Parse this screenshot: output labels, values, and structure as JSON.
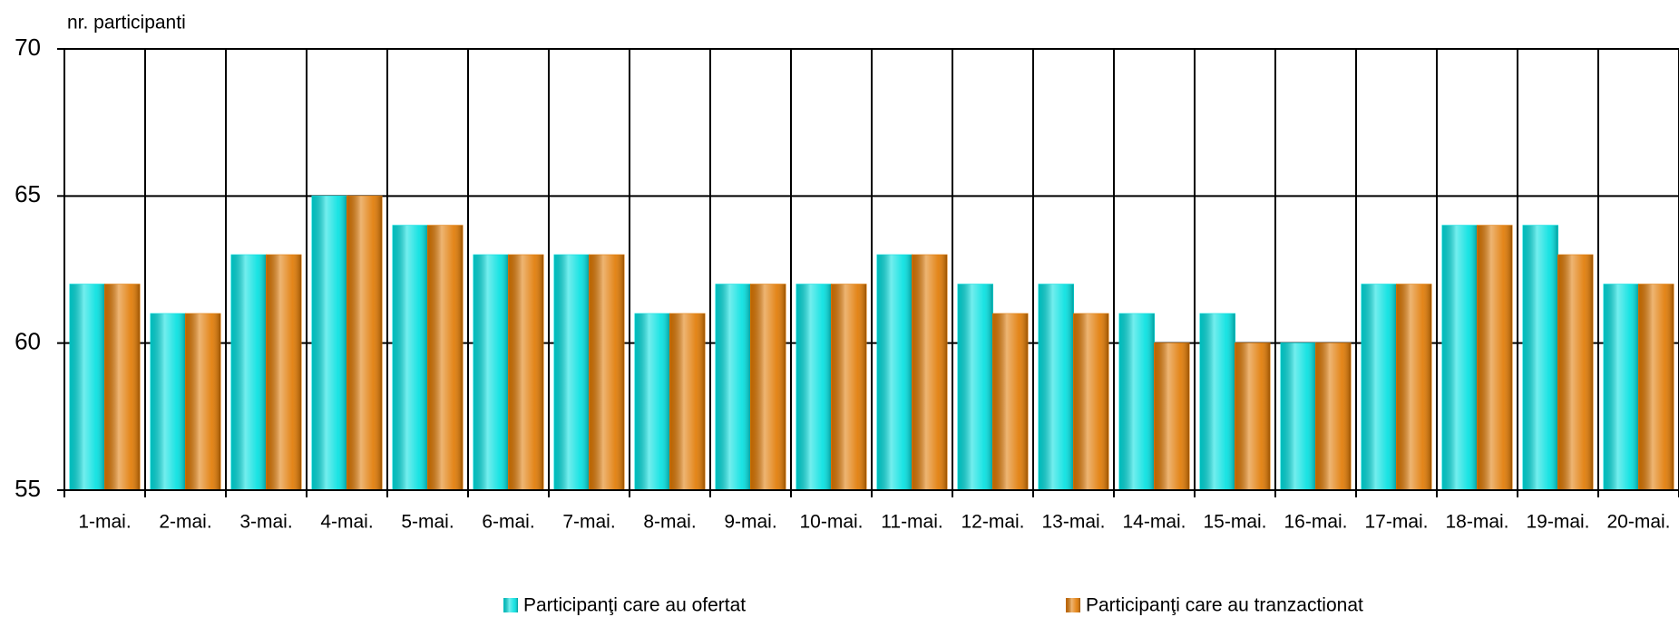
{
  "chart_data": {
    "type": "bar",
    "y_label": "nr. participanti",
    "categories": [
      "1-mai.",
      "2-mai.",
      "3-mai.",
      "4-mai.",
      "5-mai.",
      "6-mai.",
      "7-mai.",
      "8-mai.",
      "9-mai.",
      "10-mai.",
      "11-mai.",
      "12-mai.",
      "13-mai.",
      "14-mai.",
      "15-mai.",
      "16-mai.",
      "17-mai.",
      "18-mai.",
      "19-mai.",
      "20-mai."
    ],
    "series": [
      {
        "name": "Participanţi care au ofertat",
        "color": "#00e0e0",
        "values": [
          62,
          61,
          63,
          65,
          64,
          63,
          63,
          61,
          62,
          62,
          63,
          62,
          62,
          61,
          61,
          60,
          62,
          64,
          64,
          62
        ]
      },
      {
        "name": "Participanţi care au tranzactionat",
        "color": "#e07800",
        "values": [
          62,
          61,
          63,
          65,
          64,
          63,
          63,
          61,
          62,
          62,
          63,
          61,
          61,
          60,
          60,
          60,
          62,
          64,
          63,
          62
        ]
      }
    ],
    "ylim": [
      55,
      70
    ],
    "yticks": [
      55,
      60,
      65,
      70
    ],
    "grid": true,
    "legend": "bottom"
  }
}
